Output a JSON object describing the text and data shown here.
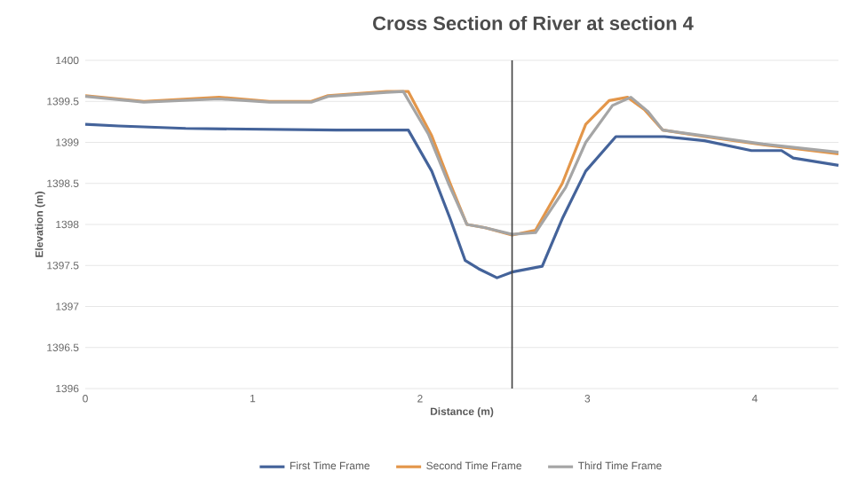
{
  "chart_data": {
    "type": "line",
    "title": "Cross Section of River at section 4",
    "xlabel": "Distance (m)",
    "ylabel": "Elevation (m)",
    "xlim": [
      0,
      4.5
    ],
    "xticks": [
      0,
      1,
      2,
      3,
      4
    ],
    "ylim": [
      1396,
      1400
    ],
    "yticks": [
      1396,
      1396.5,
      1397,
      1397.5,
      1398,
      1398.5,
      1399,
      1399.5,
      1400
    ],
    "grid": "y",
    "legend": "bottom",
    "marker": "none",
    "line_style": "solid",
    "ref_lines": [
      {
        "axis": "x",
        "value": 2.55,
        "color": "#404040"
      }
    ],
    "series": [
      {
        "name": "First Time Frame",
        "color": "#44639a",
        "x": [
          0,
          0.2,
          0.6,
          1.5,
          1.93,
          2.07,
          2.18,
          2.27,
          2.35,
          2.46,
          2.55,
          2.73,
          2.85,
          2.99,
          3.17,
          3.46,
          3.7,
          3.98,
          4.16,
          4.23,
          4.5
        ],
        "values": [
          1399.22,
          1399.2,
          1399.17,
          1399.15,
          1399.15,
          1398.65,
          1398.07,
          1397.56,
          1397.46,
          1397.35,
          1397.42,
          1397.49,
          1398.07,
          1398.65,
          1399.07,
          1399.07,
          1399.02,
          1398.9,
          1398.9,
          1398.81,
          1398.72
        ]
      },
      {
        "name": "Second Time Frame",
        "color": "#e3964a",
        "x": [
          0,
          0.35,
          0.8,
          1.1,
          1.35,
          1.45,
          1.8,
          1.93,
          2.07,
          2.18,
          2.28,
          2.39,
          2.55,
          2.69,
          2.85,
          2.99,
          3.13,
          3.24,
          3.34,
          3.45,
          3.7,
          4.05,
          4.5
        ],
        "values": [
          1399.57,
          1399.5,
          1399.55,
          1399.5,
          1399.5,
          1399.57,
          1399.62,
          1399.62,
          1399.08,
          1398.5,
          1398.0,
          1397.96,
          1397.87,
          1397.93,
          1398.5,
          1399.22,
          1399.51,
          1399.55,
          1399.4,
          1399.15,
          1399.07,
          1398.97,
          1398.86
        ]
      },
      {
        "name": "Third Time Frame",
        "color": "#a5a5a5",
        "x": [
          0,
          0.35,
          0.8,
          1.1,
          1.35,
          1.45,
          1.8,
          1.9,
          2.05,
          2.17,
          2.28,
          2.39,
          2.55,
          2.69,
          2.87,
          2.99,
          3.15,
          3.26,
          3.36,
          3.45,
          3.7,
          4.05,
          4.5
        ],
        "values": [
          1399.56,
          1399.49,
          1399.53,
          1399.49,
          1399.49,
          1399.56,
          1399.61,
          1399.62,
          1399.1,
          1398.5,
          1398.0,
          1397.96,
          1397.88,
          1397.9,
          1398.45,
          1399.0,
          1399.45,
          1399.55,
          1399.38,
          1399.15,
          1399.08,
          1398.98,
          1398.88
        ]
      }
    ]
  }
}
